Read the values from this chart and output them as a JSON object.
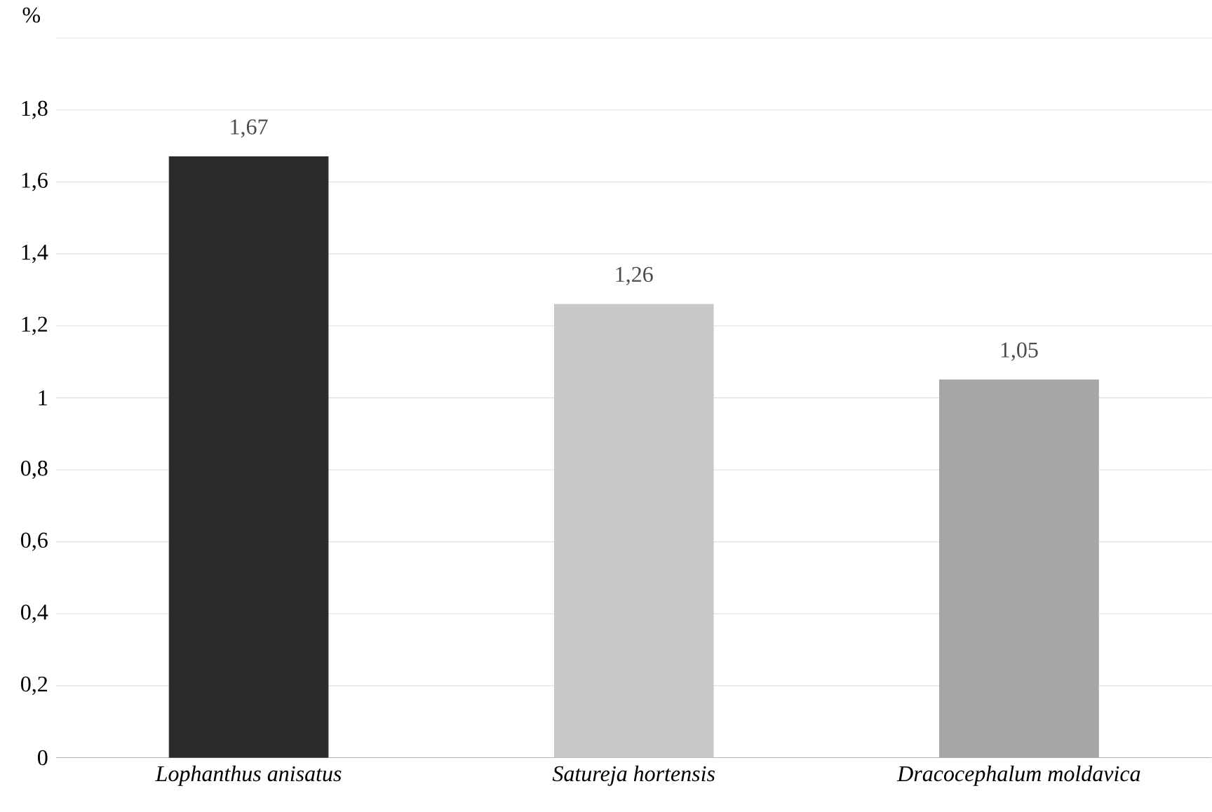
{
  "chart_data": {
    "type": "bar",
    "ylabel": "%",
    "categories": [
      "Lophanthus anisatus",
      "Satureja hortensis",
      "Dracocephalum moldavica"
    ],
    "values": [
      1.67,
      1.26,
      1.05
    ],
    "value_labels": [
      "1,67",
      "1,26",
      "1,05"
    ],
    "colors": [
      "#2b2b2b",
      "#c8c8c8",
      "#a6a6a6"
    ],
    "ylim": [
      0,
      2
    ],
    "yticks": [
      0,
      {
        "value": 0.2,
        "label": "0,2"
      },
      {
        "value": 0.4,
        "label": "0,4"
      },
      {
        "value": 0.6,
        "label": "0,6"
      },
      {
        "value": 0.8,
        "label": "0,8"
      },
      1,
      {
        "value": 1.2,
        "label": "1,2"
      },
      {
        "value": 1.4,
        "label": "1,4"
      },
      {
        "value": 1.6,
        "label": "1,6"
      },
      {
        "value": 1.8,
        "label": "1,8"
      },
      {
        "value": 2,
        "label": null
      }
    ],
    "grid": "y"
  }
}
